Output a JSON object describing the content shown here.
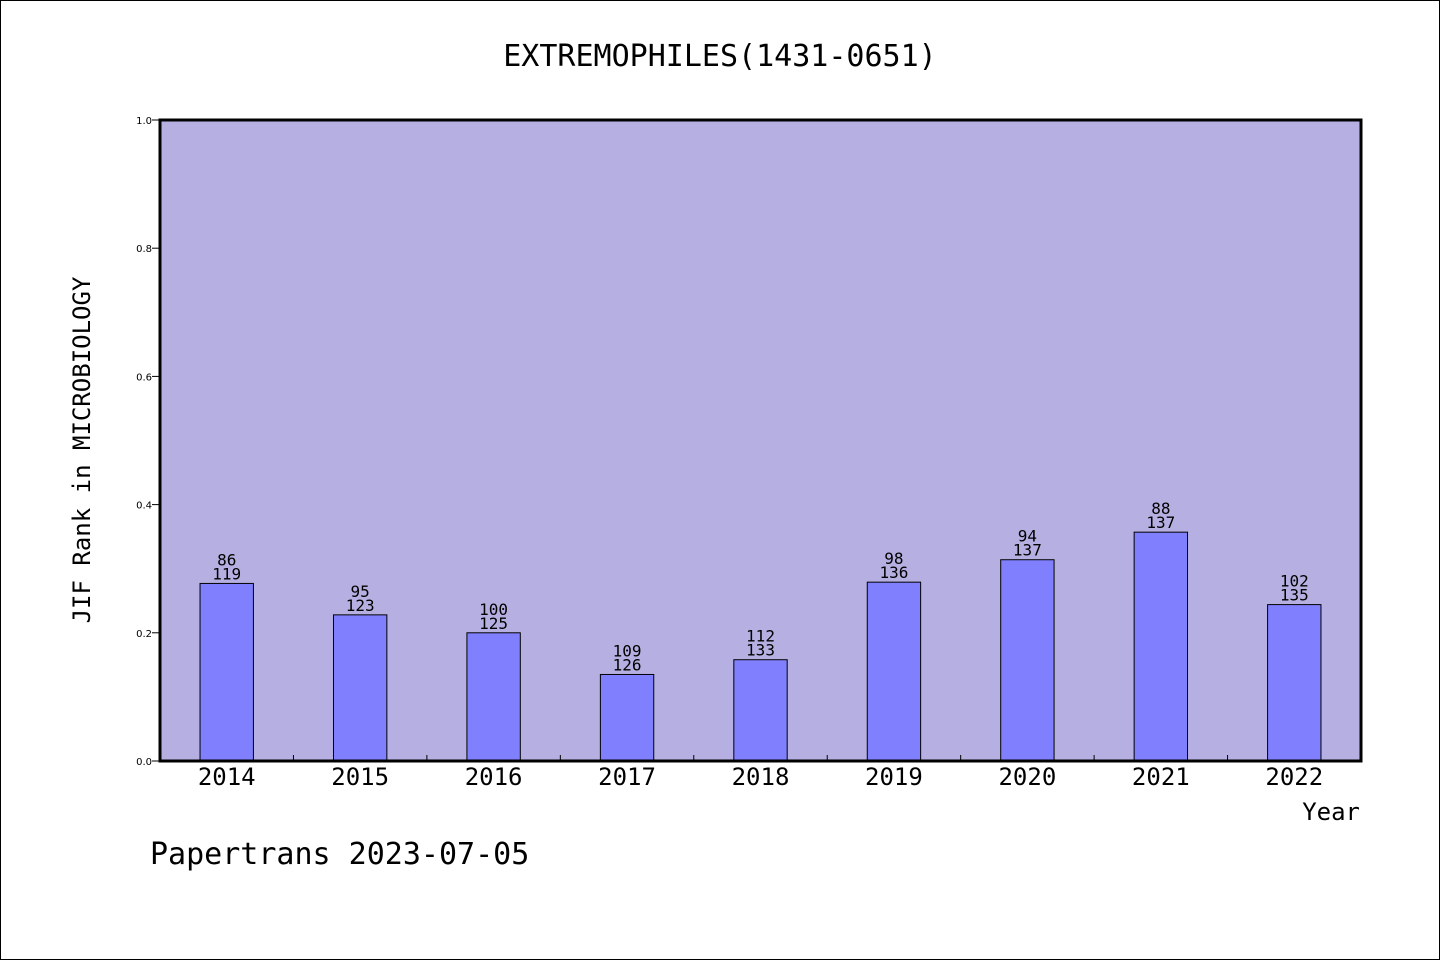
{
  "footer_text": "Papertrans 2023-07-05",
  "chart_data": {
    "type": "bar",
    "title": "EXTREMOPHILES(1431-0651)",
    "xlabel": "Year",
    "ylabel": "JIF Rank in MICROBIOLOGY",
    "ylim": [
      0.0,
      1.0
    ],
    "yticks": [
      "0.0",
      "0.2",
      "0.4",
      "0.6",
      "0.8",
      "1.0"
    ],
    "grid": false,
    "categories": [
      "2014",
      "2015",
      "2016",
      "2017",
      "2018",
      "2019",
      "2020",
      "2021",
      "2022"
    ],
    "values": [
      0.277,
      0.228,
      0.2,
      0.135,
      0.158,
      0.279,
      0.314,
      0.357,
      0.244
    ],
    "rank": [
      "86",
      "95",
      "100",
      "109",
      "112",
      "98",
      "94",
      "88",
      "102"
    ],
    "total": [
      "119",
      "123",
      "125",
      "126",
      "133",
      "136",
      "137",
      "137",
      "135"
    ],
    "colors": {
      "plot_background": "#b6b0e2",
      "bar_fill": "#8080ff",
      "bar_stroke": "#000000"
    }
  }
}
